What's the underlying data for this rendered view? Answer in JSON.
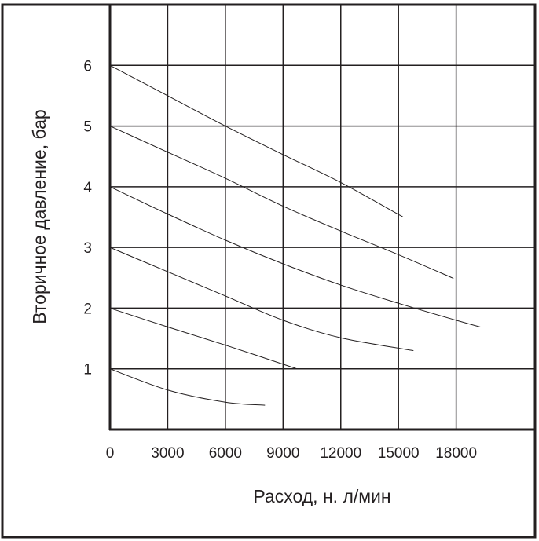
{
  "chart_data": {
    "type": "line",
    "xlabel": "Расход, н. л/мин",
    "ylabel": "Вторичное давление, бар",
    "xlim": [
      0,
      22100
    ],
    "ylim": [
      0,
      7
    ],
    "x_ticks": [
      0,
      3000,
      6000,
      9000,
      12000,
      15000,
      18000
    ],
    "x_tick_labels": [
      "0",
      "3000",
      "6000",
      "9000",
      "12000",
      "15000",
      "18000"
    ],
    "y_ticks": [
      1,
      2,
      3,
      4,
      5,
      6
    ],
    "y_tick_labels": [
      "1",
      "2",
      "3",
      "4",
      "5",
      "6"
    ],
    "grid": true,
    "line_color": "#231f20",
    "series": [
      {
        "x": [
          0,
          3000,
          6000,
          9000,
          12000,
          15245
        ],
        "y": [
          6.0,
          5.5,
          5.0,
          4.53,
          4.07,
          3.5
        ]
      },
      {
        "x": [
          0,
          3000,
          6000,
          9000,
          12000,
          15000,
          17860
        ],
        "y": [
          5.0,
          4.57,
          4.14,
          3.68,
          3.27,
          2.88,
          2.49
        ]
      },
      {
        "x": [
          0,
          3000,
          6000,
          9000,
          12000,
          15000,
          18000,
          19250
        ],
        "y": [
          4.0,
          3.55,
          3.12,
          2.73,
          2.38,
          2.08,
          1.8,
          1.69
        ]
      },
      {
        "x": [
          0,
          3000,
          6000,
          9000,
          12000,
          15780
        ],
        "y": [
          3.0,
          2.6,
          2.2,
          1.8,
          1.51,
          1.3
        ]
      },
      {
        "x": [
          0,
          3000,
          6000,
          9720
        ],
        "y": [
          2.0,
          1.69,
          1.39,
          1.0
        ]
      },
      {
        "x": [
          0,
          3000,
          6000,
          8060
        ],
        "y": [
          1.0,
          0.65,
          0.45,
          0.4
        ]
      }
    ]
  }
}
